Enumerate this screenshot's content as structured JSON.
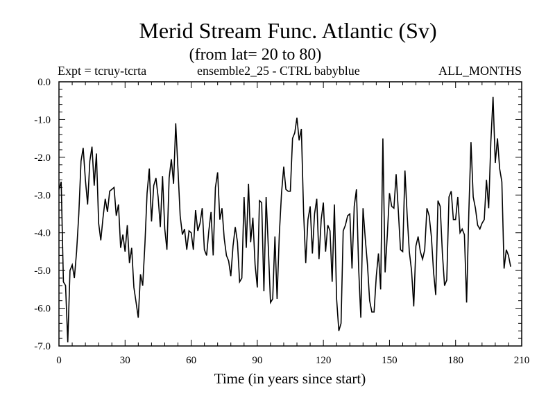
{
  "header": {
    "title": "Merid Stream Func. Atlantic (Sv)",
    "subtitle": "(from lat= 20 to 80)",
    "expt": "Expt = tcruy-tcrta",
    "ensemble": "ensemble2_25 - CTRL babyblue",
    "months": "ALL_MONTHS"
  },
  "chart_data": {
    "type": "line",
    "title": "Merid Stream Func. Atlantic (Sv)",
    "subtitle": "(from lat= 20 to 80)",
    "xlabel": "Time (in years since start)",
    "ylabel": "",
    "xlim": [
      0,
      210
    ],
    "ylim": [
      -7.0,
      0.0
    ],
    "x_ticks": [
      0,
      30,
      60,
      90,
      120,
      150,
      180,
      210
    ],
    "x_tick_labels": [
      "0",
      "30",
      "60",
      "90",
      "120",
      "150",
      "180",
      "210"
    ],
    "y_ticks": [
      0.0,
      -1.0,
      -2.0,
      -3.0,
      -4.0,
      -5.0,
      -6.0,
      -7.0
    ],
    "y_tick_labels": [
      "0.0",
      "-1.0",
      "-2.0",
      "-3.0",
      "-4.0",
      "-5.0",
      "-6.0",
      "-7.0"
    ],
    "grid": false,
    "series": [
      {
        "name": "ensemble2_25 - CTRL babyblue",
        "x_start": 0,
        "x_step": 1,
        "values": [
          -2.85,
          -2.65,
          -5.3,
          -5.4,
          -6.9,
          -5.0,
          -4.85,
          -5.2,
          -4.5,
          -3.5,
          -2.1,
          -1.75,
          -2.6,
          -3.25,
          -2.1,
          -1.72,
          -2.75,
          -1.9,
          -3.75,
          -4.2,
          -3.6,
          -3.1,
          -3.45,
          -2.9,
          -2.85,
          -2.8,
          -3.55,
          -3.25,
          -4.4,
          -4.05,
          -4.5,
          -3.8,
          -4.8,
          -4.4,
          -5.45,
          -5.85,
          -6.25,
          -5.1,
          -5.4,
          -4.3,
          -2.95,
          -2.3,
          -3.7,
          -2.75,
          -2.55,
          -3.05,
          -3.85,
          -2.5,
          -3.9,
          -4.45,
          -2.55,
          -2.05,
          -2.7,
          -1.1,
          -2.3,
          -3.55,
          -4.05,
          -3.9,
          -4.45,
          -3.95,
          -4.0,
          -4.45,
          -3.4,
          -3.95,
          -3.75,
          -3.35,
          -4.45,
          -4.6,
          -3.95,
          -3.45,
          -4.6,
          -2.8,
          -2.4,
          -3.65,
          -3.35,
          -4.15,
          -4.6,
          -4.75,
          -5.15,
          -4.35,
          -3.85,
          -4.25,
          -5.3,
          -5.2,
          -3.05,
          -4.4,
          -2.7,
          -4.25,
          -3.6,
          -4.85,
          -5.45,
          -3.15,
          -3.2,
          -5.55,
          -3.05,
          -4.35,
          -5.85,
          -5.75,
          -4.1,
          -5.75,
          -4.05,
          -2.95,
          -2.25,
          -2.85,
          -2.9,
          -2.9,
          -1.5,
          -1.35,
          -0.95,
          -1.55,
          -1.25,
          -3.45,
          -4.8,
          -3.65,
          -3.3,
          -4.55,
          -3.5,
          -3.1,
          -4.7,
          -3.65,
          -3.2,
          -4.5,
          -3.8,
          -3.95,
          -5.3,
          -3.25,
          -5.75,
          -6.6,
          -6.4,
          -3.95,
          -3.8,
          -3.55,
          -3.5,
          -4.95,
          -3.3,
          -2.85,
          -4.95,
          -6.25,
          -3.35,
          -4.15,
          -4.85,
          -5.8,
          -6.1,
          -6.1,
          -5.15,
          -4.55,
          -5.5,
          -1.5,
          -5.05,
          -4.05,
          -2.95,
          -3.3,
          -3.35,
          -2.45,
          -3.4,
          -4.45,
          -4.5,
          -2.35,
          -3.5,
          -4.5,
          -5.0,
          -5.95,
          -4.35,
          -4.1,
          -4.5,
          -4.7,
          -4.45,
          -3.35,
          -3.55,
          -4.1,
          -5.05,
          -5.65,
          -3.15,
          -3.3,
          -4.55,
          -5.4,
          -5.25,
          -3.05,
          -2.9,
          -3.65,
          -3.65,
          -3.05,
          -4.0,
          -3.9,
          -4.05,
          -5.85,
          -3.45,
          -1.6,
          -3.05,
          -3.35,
          -3.8,
          -3.9,
          -3.75,
          -3.65,
          -2.6,
          -3.35,
          -1.6,
          -0.4,
          -2.15,
          -1.5,
          -2.3,
          -2.65,
          -4.95,
          -4.45,
          -4.6,
          -4.9
        ]
      }
    ]
  }
}
